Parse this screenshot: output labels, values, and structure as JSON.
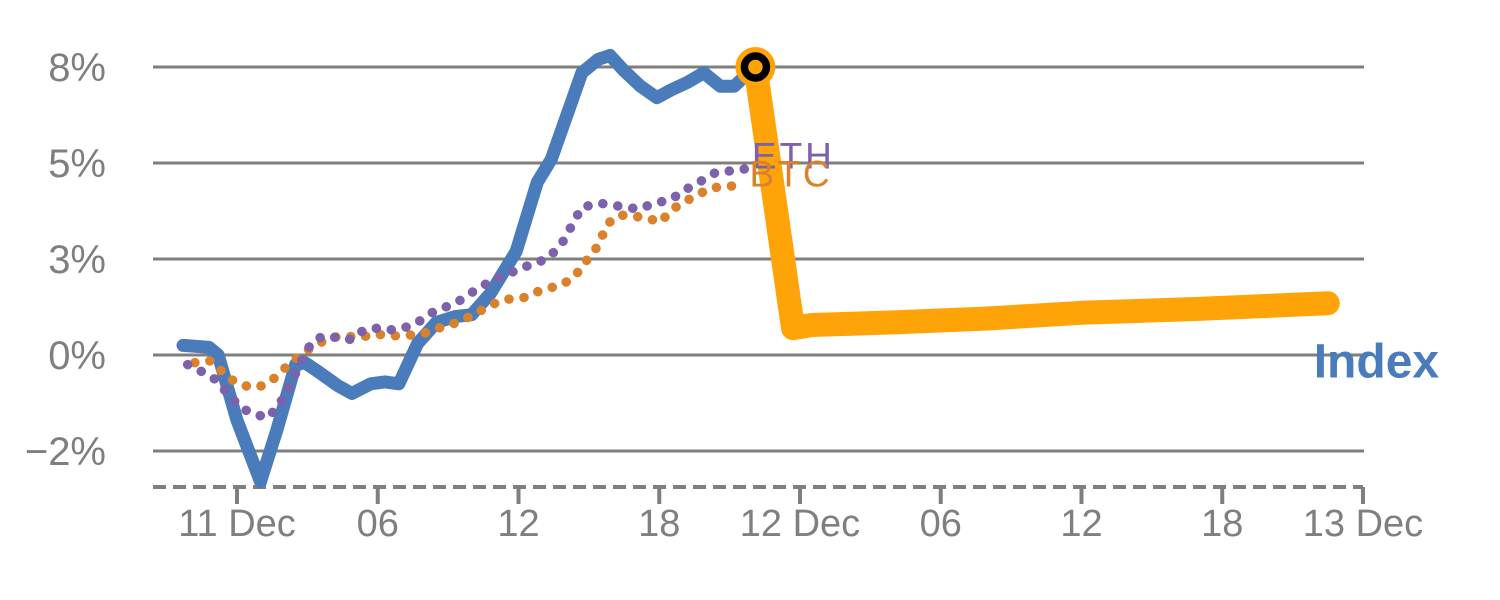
{
  "chart_data": {
    "type": "line",
    "title": "",
    "xlabel": "",
    "ylabel": "",
    "grid": true,
    "legend_position": "inline-end-labels",
    "background_color": "#ffffff",
    "grid_color": "#7f7f7f",
    "tick_text_color": "#7f7f7f",
    "x_axis": {
      "unit": "hours since 11 Dec 00:00",
      "style": "dashed-line-with-ticks",
      "ticks": [
        {
          "hour": 0,
          "label": "11 Dec"
        },
        {
          "hour": 6,
          "label": "06"
        },
        {
          "hour": 12,
          "label": "12"
        },
        {
          "hour": 18,
          "label": "18"
        },
        {
          "hour": 24,
          "label": "12 Dec"
        },
        {
          "hour": 30,
          "label": "06"
        },
        {
          "hour": 36,
          "label": "12"
        },
        {
          "hour": 42,
          "label": "18"
        },
        {
          "hour": 48,
          "label": "13 Dec"
        }
      ],
      "xlim_hours": [
        -3.6,
        48.5
      ]
    },
    "y_axis": {
      "unit": "percent change",
      "ticks": [
        {
          "value": 7.5,
          "label": "8%"
        },
        {
          "value": 5.0,
          "label": "5%"
        },
        {
          "value": 2.5,
          "label": "3%"
        },
        {
          "value": 0.0,
          "label": "0%"
        },
        {
          "value": -2.5,
          "label": "−2%"
        }
      ],
      "ylim": [
        -3.4,
        8.5
      ]
    },
    "series": [
      {
        "name": "Index",
        "color": "#4a7cbb",
        "line_style": "solid",
        "line_width": 13,
        "end_label": {
          "text": "Index",
          "hour": 45.9,
          "value": -0.15,
          "font_size": 48,
          "bold": true,
          "letter_spacing": 0,
          "anchor": "start"
        },
        "points": [
          [
            -2.3,
            0.25
          ],
          [
            -1.2,
            0.2
          ],
          [
            -0.8,
            0.0
          ],
          [
            0.0,
            -1.7
          ],
          [
            1.0,
            -3.3
          ],
          [
            1.7,
            -1.95
          ],
          [
            2.5,
            -0.25
          ],
          [
            2.9,
            -0.2
          ],
          [
            3.5,
            -0.45
          ],
          [
            4.3,
            -0.8
          ],
          [
            4.9,
            -1.0
          ],
          [
            5.7,
            -0.75
          ],
          [
            6.3,
            -0.7
          ],
          [
            6.9,
            -0.75
          ],
          [
            7.7,
            0.3
          ],
          [
            8.5,
            0.85
          ],
          [
            9.3,
            1.0
          ],
          [
            10.0,
            1.05
          ],
          [
            10.8,
            1.6
          ],
          [
            11.9,
            2.7
          ],
          [
            12.8,
            4.5
          ],
          [
            13.4,
            5.1
          ],
          [
            14.3,
            6.65
          ],
          [
            14.7,
            7.35
          ],
          [
            15.4,
            7.7
          ],
          [
            15.9,
            7.8
          ],
          [
            16.5,
            7.4
          ],
          [
            17.2,
            7.0
          ],
          [
            17.9,
            6.7
          ],
          [
            18.5,
            6.9
          ],
          [
            19.2,
            7.1
          ],
          [
            19.9,
            7.35
          ],
          [
            20.6,
            7.0
          ],
          [
            21.2,
            7.0
          ],
          [
            21.8,
            7.35
          ],
          [
            22.1,
            7.5
          ]
        ]
      },
      {
        "name": "BTC",
        "color": "#d9822b",
        "line_style": "dotted",
        "line_width": 9.5,
        "end_label": {
          "text": "BTC",
          "hour": 21.85,
          "value": 4.72,
          "font_size": 37,
          "bold": false,
          "letter_spacing": 3,
          "anchor": "start"
        },
        "points": [
          [
            -1.8,
            -0.2
          ],
          [
            -1.1,
            -0.15
          ],
          [
            -0.6,
            -0.45
          ],
          [
            -0.1,
            -0.7
          ],
          [
            0.6,
            -0.85
          ],
          [
            1.1,
            -0.8
          ],
          [
            1.6,
            -0.6
          ],
          [
            2.2,
            -0.25
          ],
          [
            2.7,
            0.0
          ],
          [
            3.3,
            0.25
          ],
          [
            4.0,
            0.45
          ],
          [
            4.6,
            0.5
          ],
          [
            5.2,
            0.45
          ],
          [
            5.9,
            0.55
          ],
          [
            6.5,
            0.5
          ],
          [
            7.1,
            0.5
          ],
          [
            7.9,
            0.55
          ],
          [
            8.6,
            0.7
          ],
          [
            9.4,
            0.85
          ],
          [
            10.1,
            1.05
          ],
          [
            10.8,
            1.3
          ],
          [
            11.5,
            1.45
          ],
          [
            12.3,
            1.5
          ],
          [
            13.0,
            1.7
          ],
          [
            13.7,
            1.8
          ],
          [
            14.2,
            1.95
          ],
          [
            14.6,
            2.2
          ],
          [
            15.0,
            2.55
          ],
          [
            15.4,
            2.85
          ],
          [
            15.7,
            3.3
          ],
          [
            16.0,
            3.55
          ],
          [
            16.5,
            3.65
          ],
          [
            17.1,
            3.6
          ],
          [
            17.6,
            3.55
          ],
          [
            18.0,
            3.45
          ],
          [
            18.7,
            3.85
          ],
          [
            19.4,
            4.1
          ],
          [
            20.2,
            4.35
          ],
          [
            21.0,
            4.4
          ],
          [
            21.6,
            4.4
          ]
        ]
      },
      {
        "name": "ETH",
        "color": "#7d62ab",
        "line_style": "dotted",
        "line_width": 9.5,
        "end_label": {
          "text": "ETH",
          "hour": 21.95,
          "value": 5.2,
          "font_size": 37,
          "bold": false,
          "letter_spacing": 3,
          "anchor": "start"
        },
        "points": [
          [
            -2.1,
            -0.25
          ],
          [
            -1.6,
            -0.4
          ],
          [
            -1.0,
            -0.6
          ],
          [
            -0.4,
            -1.0
          ],
          [
            0.2,
            -1.4
          ],
          [
            0.9,
            -1.55
          ],
          [
            1.2,
            -1.65
          ],
          [
            1.7,
            -1.4
          ],
          [
            2.3,
            -0.75
          ],
          [
            2.7,
            -0.2
          ],
          [
            3.2,
            0.35
          ],
          [
            3.7,
            0.5
          ],
          [
            4.3,
            0.45
          ],
          [
            4.9,
            0.4
          ],
          [
            5.4,
            0.65
          ],
          [
            6.0,
            0.7
          ],
          [
            6.5,
            0.65
          ],
          [
            7.1,
            0.7
          ],
          [
            7.7,
            0.85
          ],
          [
            8.3,
            1.1
          ],
          [
            8.9,
            1.25
          ],
          [
            9.6,
            1.45
          ],
          [
            10.3,
            1.75
          ],
          [
            11.1,
            2.0
          ],
          [
            11.7,
            2.15
          ],
          [
            12.5,
            2.35
          ],
          [
            13.2,
            2.5
          ],
          [
            13.8,
            2.85
          ],
          [
            14.3,
            3.4
          ],
          [
            14.7,
            3.85
          ],
          [
            15.1,
            3.9
          ],
          [
            15.5,
            3.95
          ],
          [
            16.0,
            3.9
          ],
          [
            16.6,
            3.85
          ],
          [
            17.1,
            3.8
          ],
          [
            17.8,
            3.95
          ],
          [
            18.5,
            4.05
          ],
          [
            19.1,
            4.3
          ],
          [
            19.7,
            4.5
          ],
          [
            20.4,
            4.75
          ],
          [
            21.1,
            4.8
          ],
          [
            21.7,
            4.85
          ]
        ]
      },
      {
        "name": "Index-live",
        "color": "#ffa408",
        "line_style": "solid",
        "line_width": 24,
        "end_label": null,
        "points": [
          [
            22.1,
            7.5
          ],
          [
            23.7,
            0.7
          ],
          [
            24.5,
            0.78
          ],
          [
            28.0,
            0.85
          ],
          [
            32.0,
            0.95
          ],
          [
            36.0,
            1.1
          ],
          [
            41.0,
            1.2
          ],
          [
            46.5,
            1.35
          ]
        ]
      }
    ],
    "marker": {
      "series": "Index-live",
      "hour": 22.1,
      "value": 7.5,
      "outer_color": "#ffa408",
      "ring_color": "#000000",
      "outer_radius": 20,
      "ring_radius": 11,
      "ring_width": 7.5
    }
  }
}
